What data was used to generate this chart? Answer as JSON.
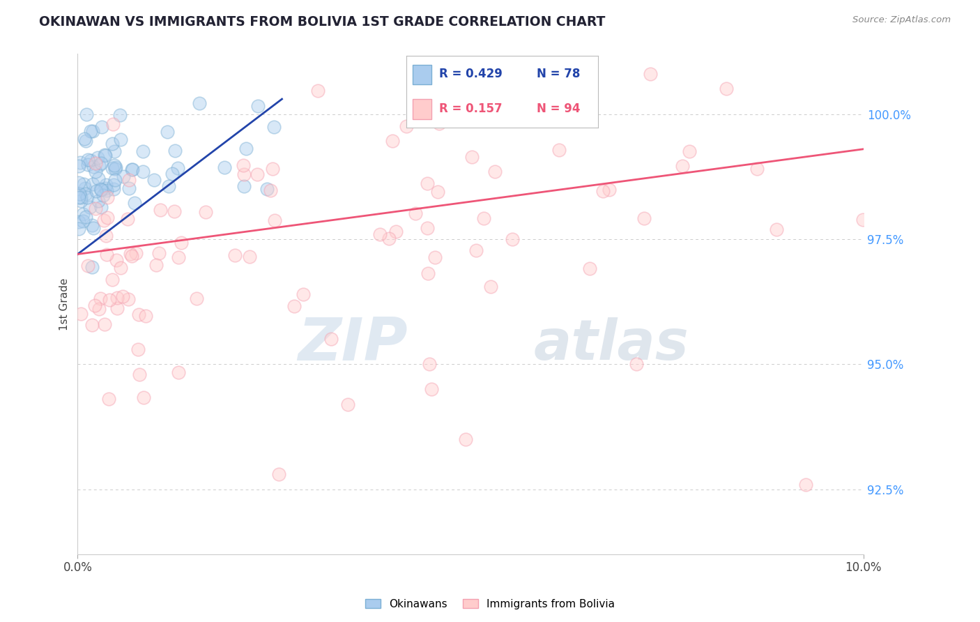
{
  "title": "OKINAWAN VS IMMIGRANTS FROM BOLIVIA 1ST GRADE CORRELATION CHART",
  "source_text": "Source: ZipAtlas.com",
  "ylabel": "1st Grade",
  "watermark_zip": "ZIP",
  "watermark_atlas": "atlas",
  "legend_r1": "R = 0.429",
  "legend_n1": "N = 78",
  "legend_r2": "R = 0.157",
  "legend_n2": "N = 94",
  "legend_label1": "Okinawans",
  "legend_label2": "Immigrants from Bolivia",
  "blue_color": "#7BAFD4",
  "blue_face": "#AACCEE",
  "pink_color": "#F4A0B0",
  "pink_face": "#FFCCCC",
  "blue_line_color": "#2244AA",
  "pink_line_color": "#EE5577",
  "right_axis_color": "#4499FF",
  "ytick_labels": [
    "92.5%",
    "95.0%",
    "97.5%",
    "100.0%"
  ],
  "ytick_vals": [
    92.5,
    95.0,
    97.5,
    100.0
  ],
  "xlim": [
    0.0,
    10.0
  ],
  "ylim": [
    91.2,
    101.2
  ],
  "blue_line_x0": 0.0,
  "blue_line_y0": 97.2,
  "blue_line_x1": 2.6,
  "blue_line_y1": 100.3,
  "pink_line_x0": 0.0,
  "pink_line_y0": 97.2,
  "pink_line_x1": 10.0,
  "pink_line_y1": 99.3,
  "bg_color": "#FFFFFF",
  "grid_color": "#CCCCCC",
  "scatter_size": 180,
  "scatter_alpha": 0.45
}
